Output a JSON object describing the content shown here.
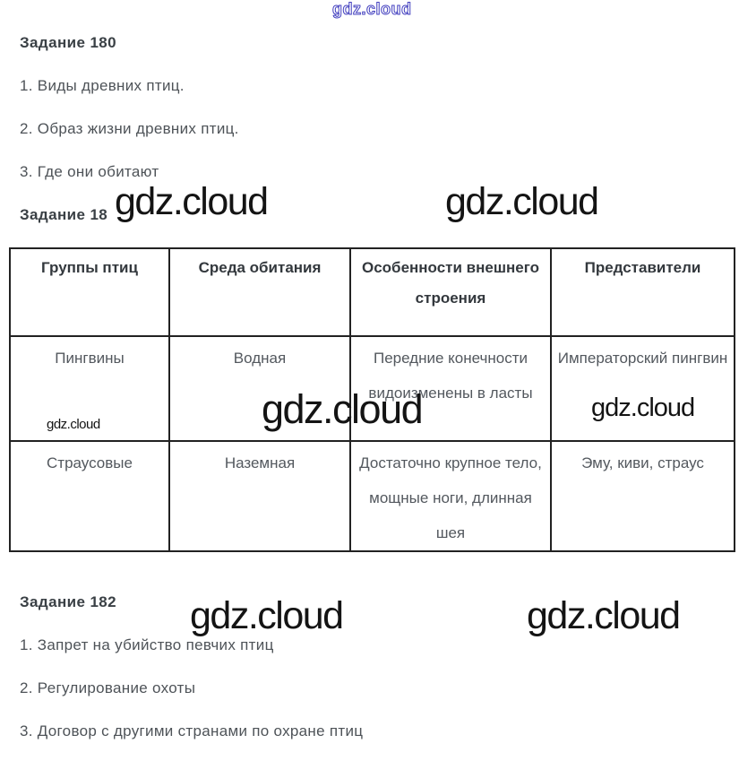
{
  "watermark": {
    "text": "gdz.cloud",
    "outline_color": "#4340bf",
    "solid_color": "#141414"
  },
  "task180": {
    "heading": "Задание 180",
    "items": [
      "1. Виды древних птиц.",
      "2. Образ жизни древних птиц.",
      "3. Где они обитают"
    ]
  },
  "task181": {
    "heading": "Задание 18",
    "table": {
      "headers": [
        "Группы птиц",
        "Среда обитания",
        "Особенности внешнего строения",
        "Представители"
      ],
      "rows": [
        {
          "group": "Пингвины",
          "habitat": "Водная",
          "features": "Передние конечности видоизменены в ласты",
          "representatives": "Императорский пингвин"
        },
        {
          "group": "Страусовые",
          "habitat": "Наземная",
          "features": "Достаточно крупное тело, мощные ноги, длинная шея",
          "representatives": "Эму, киви, страус"
        }
      ]
    }
  },
  "task182": {
    "heading": "Задание 182",
    "items": [
      "1. Запрет на убийство певчих птиц",
      "2. Регулирование охоты",
      "3. Договор с другими странами по охране птиц"
    ]
  }
}
